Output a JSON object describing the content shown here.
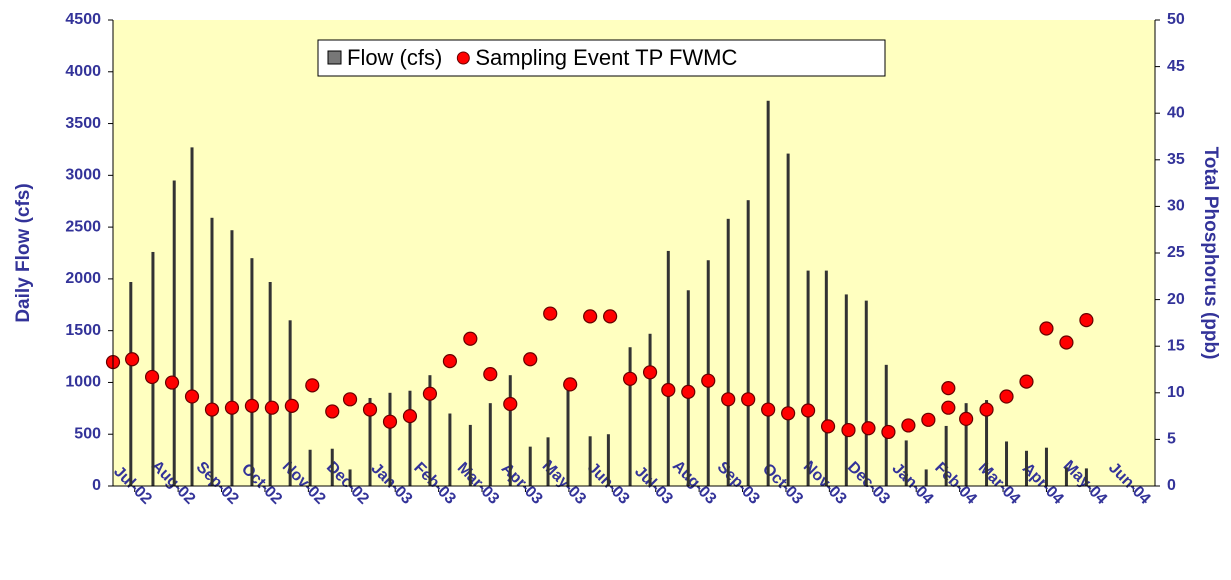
{
  "chart_data": {
    "type": "bar",
    "xlim": [
      0.5,
      24.5
    ],
    "xticks": [
      {
        "value": 1,
        "label": "Jul-02"
      },
      {
        "value": 2,
        "label": "Aug-02"
      },
      {
        "value": 3,
        "label": "Sep-02"
      },
      {
        "value": 4,
        "label": "Oct-02"
      },
      {
        "value": 5,
        "label": "Nov-02"
      },
      {
        "value": 6,
        "label": "Dec-02"
      },
      {
        "value": 7,
        "label": "Jan-03"
      },
      {
        "value": 8,
        "label": "Feb-03"
      },
      {
        "value": 9,
        "label": "Mar-03"
      },
      {
        "value": 10,
        "label": "Apr-03"
      },
      {
        "value": 11,
        "label": "May-03"
      },
      {
        "value": 12,
        "label": "Jun-03"
      },
      {
        "value": 13,
        "label": "Jul-03"
      },
      {
        "value": 14,
        "label": "Aug-03"
      },
      {
        "value": 15,
        "label": "Sep-03"
      },
      {
        "value": 16,
        "label": "Oct-03"
      },
      {
        "value": 17,
        "label": "Nov-03"
      },
      {
        "value": 18,
        "label": "Dec-03"
      },
      {
        "value": 19,
        "label": "Jan-04"
      },
      {
        "value": 20,
        "label": "Feb-04"
      },
      {
        "value": 21,
        "label": "Mar-04"
      },
      {
        "value": 22,
        "label": "Apr-04"
      },
      {
        "value": 23,
        "label": "May-04"
      },
      {
        "value": 24,
        "label": "Jun-04"
      }
    ],
    "ylabel": "Daily Flow (cfs)",
    "ylim": [
      0,
      4500
    ],
    "yticks": [
      0,
      500,
      1000,
      1500,
      2000,
      2500,
      3000,
      3500,
      4000,
      4500
    ],
    "y2label": "Total Phosphorus (ppb)",
    "y2lim": [
      0,
      50
    ],
    "y2ticks": [
      0,
      5,
      10,
      15,
      20,
      25,
      30,
      35,
      40,
      45,
      50
    ],
    "legend": "top-center",
    "series": [
      {
        "name": "Flow (cfs)",
        "type": "bar",
        "color": "#333333",
        "x": [
          0.91,
          1.42,
          1.91,
          2.32,
          2.78,
          3.24,
          3.7,
          4.12,
          4.58,
          5.04,
          5.55,
          5.96,
          6.42,
          6.88,
          7.34,
          7.8,
          8.26,
          8.73,
          9.19,
          9.65,
          10.11,
          10.52,
          10.98,
          11.49,
          11.91,
          12.41,
          12.87,
          13.29,
          13.75,
          14.21,
          14.67,
          15.13,
          15.59,
          16.05,
          16.51,
          16.93,
          17.39,
          17.85,
          18.31,
          18.77,
          19.23,
          19.69,
          20.15,
          20.62,
          21.08,
          21.54,
          22.0,
          22.46,
          22.92
        ],
        "values": [
          1970,
          2260,
          2950,
          3270,
          2590,
          2470,
          2200,
          1970,
          1600,
          350,
          360,
          160,
          850,
          900,
          920,
          1070,
          700,
          590,
          800,
          1070,
          380,
          470,
          1000,
          480,
          500,
          1340,
          1470,
          2270,
          1890,
          2180,
          2580,
          2760,
          3720,
          3210,
          2080,
          2080,
          1850,
          1790,
          1170,
          440,
          160,
          580,
          800,
          830,
          430,
          340,
          370,
          180,
          170
        ]
      },
      {
        "name": "Sampling Event TP FWMC",
        "type": "scatter",
        "axis": "y2",
        "color": "#ff0000",
        "x": [
          0.5,
          0.94,
          1.4,
          1.86,
          2.32,
          2.78,
          3.24,
          3.7,
          4.16,
          4.62,
          5.09,
          5.55,
          5.96,
          6.42,
          6.88,
          7.34,
          7.8,
          8.26,
          8.73,
          9.19,
          9.65,
          10.11,
          10.57,
          11.03,
          11.49,
          11.95,
          12.41,
          12.87,
          13.29,
          13.75,
          14.21,
          14.67,
          15.13,
          15.59,
          16.05,
          16.51,
          16.97,
          17.44,
          17.9,
          18.36,
          18.82,
          19.28,
          19.74,
          19.74,
          20.15,
          20.62,
          21.08,
          21.54,
          22.0,
          22.46,
          22.92
        ],
        "values": [
          13.3,
          13.6,
          11.7,
          11.1,
          9.6,
          8.2,
          8.4,
          8.6,
          8.4,
          8.6,
          10.8,
          8.0,
          9.3,
          8.2,
          6.9,
          7.5,
          9.9,
          13.4,
          15.8,
          12.0,
          8.8,
          13.6,
          18.5,
          10.9,
          18.2,
          18.2,
          11.5,
          12.2,
          10.3,
          10.1,
          11.3,
          9.3,
          9.3,
          8.2,
          7.8,
          8.1,
          6.4,
          6.0,
          6.2,
          5.8,
          6.5,
          7.1,
          10.5,
          8.4,
          7.2,
          8.2,
          9.6,
          11.2,
          16.9,
          15.4,
          17.8
        ]
      }
    ]
  }
}
